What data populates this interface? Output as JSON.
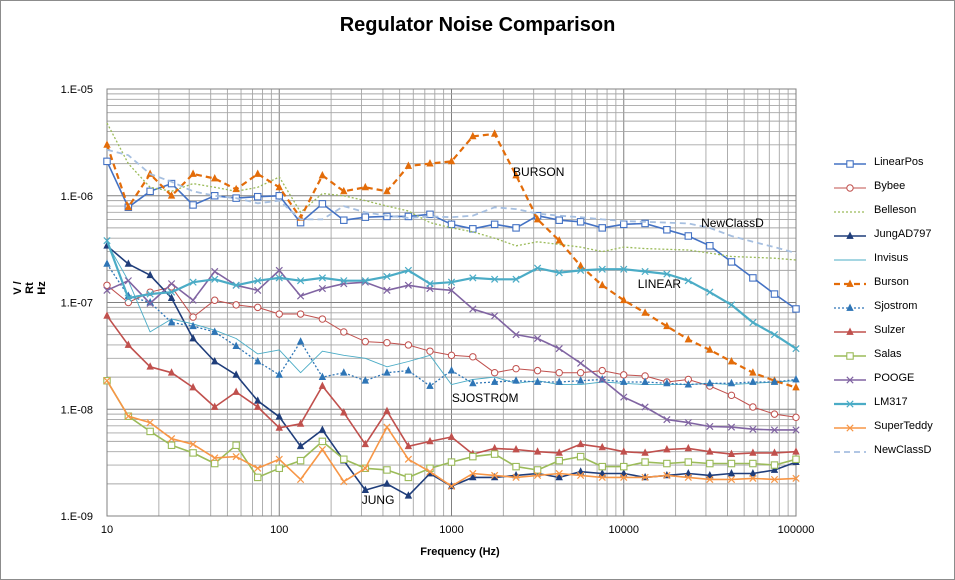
{
  "chart_data": {
    "type": "line",
    "title": "Regulator Noise Comparison",
    "xlabel": "Frequency (Hz)",
    "ylabel_lines": [
      "V /",
      "Rt Hz"
    ],
    "xscale": "log",
    "yscale": "log",
    "xlim": [
      10,
      100000
    ],
    "ylim": [
      1e-09,
      1e-05
    ],
    "grid": true,
    "legend_position": "right",
    "x_tick_labels": [
      {
        "value": 10,
        "label": "10"
      },
      {
        "value": 100,
        "label": "100"
      },
      {
        "value": 1000,
        "label": "1000"
      },
      {
        "value": 10000,
        "label": "10000"
      },
      {
        "value": 100000,
        "label": "100000"
      }
    ],
    "y_tick_labels": [
      {
        "value": 1e-09,
        "label": "1.E-09"
      },
      {
        "value": 1e-08,
        "label": "1.E-08"
      },
      {
        "value": 1e-07,
        "label": "1.E-07"
      },
      {
        "value": 1e-06,
        "label": "1.E-06"
      },
      {
        "value": 1e-05,
        "label": "1.E-05"
      }
    ],
    "annotations": [
      {
        "text": "BURSON",
        "x": 3400,
        "y": 1.65e-06
      },
      {
        "text": "NewClassD",
        "x": 42000,
        "y": 5.4e-07
      },
      {
        "text": "LINEAR",
        "x": 18000,
        "y": 1.45e-07
      },
      {
        "text": "SJOSTROM",
        "x": 1500,
        "y": 1.25e-08
      },
      {
        "text": "JUNG",
        "x": 450,
        "y": 1.38e-09
      }
    ],
    "x": [
      10,
      13.3,
      17.8,
      23.7,
      31.6,
      42.2,
      56.2,
      75,
      100,
      133,
      178,
      237,
      316,
      422,
      562,
      750,
      1000,
      1330,
      1780,
      2370,
      3160,
      4220,
      5620,
      7500,
      10000,
      13300,
      17800,
      23700,
      31600,
      42200,
      56200,
      75000,
      100000
    ],
    "series": [
      {
        "name": "LinearPos",
        "color": "#4472c4",
        "dash": "solid",
        "marker": "square",
        "width": 1.6,
        "values": [
          2.1e-06,
          7.8e-07,
          1.1e-06,
          1.3e-06,
          8.2e-07,
          1e-06,
          9.5e-07,
          9.8e-07,
          1e-06,
          5.6e-07,
          8.4e-07,
          5.9e-07,
          6.3e-07,
          6.4e-07,
          6.4e-07,
          6.7e-07,
          5.4e-07,
          4.9e-07,
          5.4e-07,
          5e-07,
          6.5e-07,
          5.9e-07,
          5.7e-07,
          5e-07,
          5.4e-07,
          5.5e-07,
          4.8e-07,
          4.2e-07,
          3.4e-07,
          2.4e-07,
          1.7e-07,
          1.2e-07,
          8.7e-08
        ]
      },
      {
        "name": "Bybee",
        "color": "#c0504d",
        "dash": "solid",
        "marker": "circle",
        "width": 1.0,
        "values": [
          1.45e-07,
          1e-07,
          1.25e-07,
          1.4e-07,
          7.3e-08,
          1.05e-07,
          9.5e-08,
          9e-08,
          7.8e-08,
          7.8e-08,
          7e-08,
          5.3e-08,
          4.3e-08,
          4.2e-08,
          4e-08,
          3.5e-08,
          3.2e-08,
          3.1e-08,
          2.2e-08,
          2.4e-08,
          2.3e-08,
          2.2e-08,
          2.2e-08,
          2.3e-08,
          2.1e-08,
          2.05e-08,
          1.8e-08,
          1.9e-08,
          1.65e-08,
          1.35e-08,
          1.05e-08,
          9e-09,
          8.4e-09
        ]
      },
      {
        "name": "Belleson",
        "color": "#9bbb59",
        "dash": "dot",
        "marker": "none",
        "width": 1.3,
        "values": [
          4.8e-06,
          2e-06,
          1.2e-06,
          1.1e-06,
          1.3e-06,
          1.2e-06,
          1.1e-06,
          1.2e-06,
          1.5e-06,
          7e-07,
          1.05e-06,
          1e-06,
          9e-07,
          8e-07,
          7.2e-07,
          5.6e-07,
          5e-07,
          4.6e-07,
          4e-07,
          3.4e-07,
          3.7e-07,
          3.5e-07,
          3.3e-07,
          3e-07,
          3.3e-07,
          3.2e-07,
          3.15e-07,
          3.1e-07,
          2.9e-07,
          2.7e-07,
          2.65e-07,
          2.6e-07,
          2.5e-07
        ]
      },
      {
        "name": "JungAD797",
        "color": "#1f3d7a",
        "dash": "solid",
        "marker": "triangle",
        "width": 1.6,
        "values": [
          3.4e-07,
          2.3e-07,
          1.8e-07,
          1.1e-07,
          4.6e-08,
          2.8e-08,
          2.1e-08,
          1.2e-08,
          8.5e-09,
          4.5e-09,
          6.4e-09,
          3.3e-09,
          1.75e-09,
          2e-09,
          1.55e-09,
          2.5e-09,
          1.9e-09,
          2.3e-09,
          2.3e-09,
          2.4e-09,
          2.5e-09,
          2.3e-09,
          2.6e-09,
          2.5e-09,
          2.5e-09,
          2.3e-09,
          2.4e-09,
          2.5e-09,
          2.4e-09,
          2.5e-09,
          2.5e-09,
          2.7e-09,
          3.2e-09
        ]
      },
      {
        "name": "Invisus",
        "color": "#4bacc6",
        "dash": "solid",
        "marker": "none",
        "width": 0.9,
        "values": [
          3.6e-07,
          1.6e-07,
          5.3e-08,
          7e-08,
          6.3e-08,
          5.5e-08,
          4.6e-08,
          3.3e-08,
          3.6e-08,
          2.2e-08,
          3.5e-08,
          3.2e-08,
          3e-08,
          2.5e-08,
          2.8e-08,
          3.2e-08,
          1.7e-08,
          1.9e-08,
          2e-08,
          1.75e-08,
          1.85e-08,
          1.7e-08,
          1.7e-08,
          1.8e-08,
          1.75e-08,
          1.7e-08,
          1.7e-08,
          1.7e-08,
          1.75e-08,
          1.7e-08,
          1.75e-08,
          1.8e-08,
          1.85e-08
        ]
      },
      {
        "name": "Burson",
        "color": "#e36c09",
        "dash": "dash",
        "marker": "triangle",
        "width": 2.2,
        "values": [
          3e-06,
          7.8e-07,
          1.6e-06,
          1e-06,
          1.6e-06,
          1.45e-06,
          1.15e-06,
          1.6e-06,
          1.2e-06,
          6.2e-07,
          1.55e-06,
          1.1e-06,
          1.2e-06,
          1.1e-06,
          1.9e-06,
          2e-06,
          2.1e-06,
          3.6e-06,
          3.8e-06,
          1.55e-06,
          6e-07,
          3.8e-07,
          2.2e-07,
          1.45e-07,
          1.05e-07,
          8e-08,
          6e-08,
          4.5e-08,
          3.6e-08,
          2.8e-08,
          2.2e-08,
          1.85e-08,
          1.6e-08
        ]
      },
      {
        "name": "Sjostrom",
        "color": "#2e75b6",
        "dash": "dot",
        "marker": "triangle",
        "width": 1.3,
        "values": [
          2.3e-07,
          1.15e-07,
          1e-07,
          6.5e-08,
          6e-08,
          5.3e-08,
          3.9e-08,
          2.8e-08,
          2.1e-08,
          4.3e-08,
          2e-08,
          2.2e-08,
          1.85e-08,
          2.2e-08,
          2.3e-08,
          1.65e-08,
          2.3e-08,
          1.75e-08,
          1.8e-08,
          1.85e-08,
          1.8e-08,
          1.8e-08,
          1.85e-08,
          1.9e-08,
          1.8e-08,
          1.8e-08,
          1.75e-08,
          1.7e-08,
          1.75e-08,
          1.75e-08,
          1.8e-08,
          1.8e-08,
          1.9e-08
        ]
      },
      {
        "name": "Sulzer",
        "color": "#c0504d",
        "dash": "solid",
        "marker": "triangle",
        "width": 1.6,
        "values": [
          7.5e-08,
          4e-08,
          2.5e-08,
          2.2e-08,
          1.6e-08,
          1.05e-08,
          1.45e-08,
          1.05e-08,
          6.7e-09,
          7.3e-09,
          1.65e-08,
          9.3e-09,
          4.7e-09,
          9.6e-09,
          4.5e-09,
          5e-09,
          5.5e-09,
          3.8e-09,
          4.3e-09,
          4.2e-09,
          4e-09,
          3.9e-09,
          4.7e-09,
          4.4e-09,
          4e-09,
          3.9e-09,
          4.2e-09,
          4.3e-09,
          4e-09,
          3.8e-09,
          3.9e-09,
          3.9e-09,
          4e-09
        ]
      },
      {
        "name": "Salas",
        "color": "#9bbb59",
        "dash": "solid",
        "marker": "square",
        "width": 1.6,
        "values": [
          1.85e-08,
          8.6e-09,
          6.2e-09,
          4.6e-09,
          3.9e-09,
          3.1e-09,
          4.6e-09,
          2.3e-09,
          2.8e-09,
          3.3e-09,
          5e-09,
          3.4e-09,
          2.8e-09,
          2.7e-09,
          2.3e-09,
          2.8e-09,
          3.2e-09,
          3.6e-09,
          3.8e-09,
          2.9e-09,
          2.7e-09,
          3.3e-09,
          3.6e-09,
          2.9e-09,
          2.9e-09,
          3.2e-09,
          3.1e-09,
          3.2e-09,
          3.1e-09,
          3.1e-09,
          3.1e-09,
          3e-09,
          3.4e-09
        ]
      },
      {
        "name": "POOGE",
        "color": "#8064a2",
        "dash": "solid",
        "marker": "x",
        "width": 1.6,
        "values": [
          1.3e-07,
          1.6e-07,
          9.8e-08,
          1.5e-07,
          1.05e-07,
          1.95e-07,
          1.45e-07,
          1.3e-07,
          2e-07,
          1.15e-07,
          1.35e-07,
          1.5e-07,
          1.55e-07,
          1.3e-07,
          1.45e-07,
          1.35e-07,
          1.3e-07,
          8.7e-08,
          7.5e-08,
          5e-08,
          4.6e-08,
          3.7e-08,
          2.7e-08,
          1.9e-08,
          1.3e-08,
          1.05e-08,
          8e-09,
          7.5e-09,
          6.9e-09,
          6.8e-09,
          6.5e-09,
          6.4e-09,
          6.4e-09
        ]
      },
      {
        "name": "LM317",
        "color": "#4bacc6",
        "dash": "solid",
        "marker": "x",
        "width": 2.2,
        "values": [
          3.8e-07,
          1.1e-07,
          1.2e-07,
          1.25e-07,
          1.55e-07,
          1.65e-07,
          1.45e-07,
          1.6e-07,
          1.7e-07,
          1.6e-07,
          1.7e-07,
          1.6e-07,
          1.6e-07,
          1.75e-07,
          2e-07,
          1.5e-07,
          1.55e-07,
          1.7e-07,
          1.65e-07,
          1.65e-07,
          2.1e-07,
          1.9e-07,
          2e-07,
          2.05e-07,
          2.05e-07,
          1.95e-07,
          1.85e-07,
          1.6e-07,
          1.25e-07,
          9.5e-08,
          6.5e-08,
          5e-08,
          3.7e-08
        ]
      },
      {
        "name": "SuperTeddy",
        "color": "#f79646",
        "dash": "solid",
        "marker": "x",
        "width": 1.6,
        "values": [
          1.85e-08,
          8.6e-09,
          7.5e-09,
          5.3e-09,
          4.7e-09,
          3.5e-09,
          3.6e-09,
          2.8e-09,
          3.4e-09,
          2.2e-09,
          4.2e-09,
          2.1e-09,
          2.8e-09,
          6.8e-09,
          3.4e-09,
          2.6e-09,
          1.9e-09,
          2.5e-09,
          2.4e-09,
          2.3e-09,
          2.4e-09,
          2.5e-09,
          2.4e-09,
          2.3e-09,
          2.3e-09,
          2.3e-09,
          2.4e-09,
          2.3e-09,
          2.2e-09,
          2.2e-09,
          2.25e-09,
          2.2e-09,
          2.25e-09
        ]
      },
      {
        "name": "NewClassD",
        "color": "#a6bfe0",
        "dash": "dash",
        "marker": "none",
        "width": 1.8,
        "values": [
          2.7e-06,
          2.4e-06,
          1.6e-06,
          1.35e-06,
          1.1e-06,
          1e-06,
          9.5e-07,
          8.5e-07,
          9e-07,
          6e-07,
          6e-07,
          8e-07,
          7e-07,
          6.5e-07,
          6.2e-07,
          6.4e-07,
          6.3e-07,
          6.5e-07,
          7.8e-07,
          7.5e-07,
          6.8e-07,
          6.5e-07,
          6.3e-07,
          6e-07,
          5.8e-07,
          5.7e-07,
          5.6e-07,
          5.5e-07,
          5e-07,
          4.2e-07,
          3.7e-07,
          3.3e-07,
          2.9e-07
        ]
      }
    ]
  }
}
